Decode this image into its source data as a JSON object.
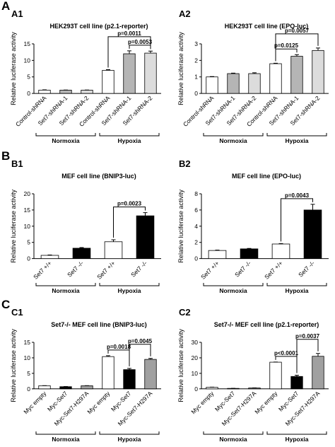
{
  "chart_data": [
    {
      "type": "bar",
      "section_label": "A",
      "panel_label": "A1",
      "title": "HEK293T cell line (p2.1-reporter)",
      "ylabel": "Relative luciferase activity",
      "categories": [
        "Control-shRNA",
        "Set7-shRNA-1",
        "Set7-shRNA-2",
        "Control-shRNA",
        "Set7-shRNA-1",
        "Set7-shRNA-2"
      ],
      "values": [
        1.0,
        1.0,
        1.0,
        7.0,
        12.0,
        12.2
      ],
      "errors": [
        0.1,
        0.05,
        0.05,
        0.2,
        0.9,
        0.6
      ],
      "colors": [
        "#ffffff",
        "#b5b5b5",
        "#dcdcdc",
        "#ffffff",
        "#b5b5b5",
        "#dcdcdc"
      ],
      "ylim": [
        0,
        15
      ],
      "yticks": [
        0,
        5,
        10,
        15
      ],
      "groups": [
        "Normoxia",
        "Hypoxia"
      ],
      "comparisons": [
        {
          "label": "p=0.0053",
          "from": 4,
          "to": 5
        },
        {
          "label": "p=0.0011",
          "from": 3,
          "to": 5
        }
      ]
    },
    {
      "type": "bar",
      "panel_label": "A2",
      "title": "HEK293T cell line (EPO-luc)",
      "ylabel": "Relative luciferase activity",
      "categories": [
        "Control-shRNA",
        "Set7-shRNA-1",
        "Set7-shRNA-2",
        "Control-shRNA",
        "Set7-shRNA-1",
        "Set7-shRNA-2"
      ],
      "values": [
        1.0,
        1.2,
        1.2,
        1.8,
        2.25,
        2.6
      ],
      "errors": [
        0.02,
        0.03,
        0.05,
        0.03,
        0.1,
        0.15
      ],
      "colors": [
        "#ffffff",
        "#b5b5b5",
        "#dcdcdc",
        "#ffffff",
        "#b5b5b5",
        "#dcdcdc"
      ],
      "ylim": [
        0,
        3
      ],
      "yticks": [
        0,
        1,
        2,
        3
      ],
      "groups": [
        "Normoxia",
        "Hypoxia"
      ],
      "comparisons": [
        {
          "label": "p=0.0125",
          "from": 3,
          "to": 4
        },
        {
          "label": "p=0.0057",
          "from": 3,
          "to": 5
        }
      ]
    },
    {
      "type": "bar",
      "section_label": "B",
      "panel_label": "B1",
      "title": "MEF cell line (BNIP3-luc)",
      "ylabel": "Relative luciferase activity",
      "categories": [
        "Set7 +/+",
        "Set7 -/-",
        "Set7 +/+",
        "Set7 -/-"
      ],
      "values": [
        1.0,
        3.2,
        5.2,
        13.2
      ],
      "errors": [
        0.1,
        0.2,
        0.6,
        1.0
      ],
      "colors": [
        "#ffffff",
        "#000000",
        "#ffffff",
        "#000000"
      ],
      "ylim": [
        0,
        20
      ],
      "yticks": [
        0,
        5,
        10,
        15,
        20
      ],
      "groups": [
        "Normoxia",
        "Hypoxia"
      ],
      "comparisons": [
        {
          "label": "p=0.0023",
          "from": 2,
          "to": 3
        }
      ]
    },
    {
      "type": "bar",
      "panel_label": "B2",
      "title": "MEF cell line (EPO-luc)",
      "ylabel": "Relative luciferase activity",
      "categories": [
        "Set7 +/+",
        "Set7 -/-",
        "Set7 +/+",
        "Set7 -/-"
      ],
      "values": [
        1.0,
        1.2,
        1.8,
        6.0
      ],
      "errors": [
        0.05,
        0.05,
        0.05,
        0.7
      ],
      "colors": [
        "#ffffff",
        "#000000",
        "#ffffff",
        "#000000"
      ],
      "ylim": [
        0,
        8
      ],
      "yticks": [
        0,
        2,
        4,
        6,
        8
      ],
      "groups": [
        "Normoxia",
        "Hypoxia"
      ],
      "comparisons": [
        {
          "label": "p=0.0043",
          "from": 2,
          "to": 3
        }
      ]
    },
    {
      "type": "bar",
      "section_label": "C",
      "panel_label": "C1",
      "title": "Set7-/- MEF cell line (BNIP3-luc)",
      "ylabel": "Relative luciferase activity",
      "categories": [
        "Myc empty",
        "Myc-Set7",
        "Myc-Set7-H297A",
        "Myc empty",
        "Myc-Set7",
        "Myc-Set7-H297A"
      ],
      "values": [
        1.0,
        0.7,
        1.0,
        10.4,
        6.2,
        9.5
      ],
      "errors": [
        0.05,
        0.05,
        0.05,
        0.3,
        0.4,
        0.3
      ],
      "colors": [
        "#ffffff",
        "#000000",
        "#a0a0a0",
        "#ffffff",
        "#000000",
        "#a0a0a0"
      ],
      "ylim": [
        0,
        15
      ],
      "yticks": [
        0,
        5,
        10,
        15
      ],
      "groups": [
        "Normoxia",
        "Hypoxia"
      ],
      "comparisons": [
        {
          "label": "p=0.0018",
          "from": 3,
          "to": 4
        },
        {
          "label": "p=0.0045",
          "from": 4,
          "to": 5
        }
      ]
    },
    {
      "type": "bar",
      "panel_label": "C2",
      "title": "Set7-/- MEF cell line (p2.1-reporter)",
      "ylabel": "Relative luciferase activity",
      "categories": [
        "Myc empty",
        "Myc-Set7",
        "Myc-Set7-H297A",
        "Myc empty",
        "Myc-Set7",
        "Myc-Set7-H297A"
      ],
      "values": [
        1.0,
        0.3,
        0.6,
        17.2,
        8.0,
        21.0
      ],
      "errors": [
        0.1,
        0.05,
        0.05,
        0.1,
        0.8,
        1.8
      ],
      "colors": [
        "#ffffff",
        "#000000",
        "#a0a0a0",
        "#ffffff",
        "#000000",
        "#a0a0a0"
      ],
      "ylim": [
        0,
        30
      ],
      "yticks": [
        0,
        10,
        20,
        30
      ],
      "groups": [
        "Normoxia",
        "Hypoxia"
      ],
      "comparisons": [
        {
          "label": "p<0.0001",
          "from": 3,
          "to": 4
        },
        {
          "label": "p=0.0037",
          "from": 4,
          "to": 5
        }
      ]
    }
  ]
}
